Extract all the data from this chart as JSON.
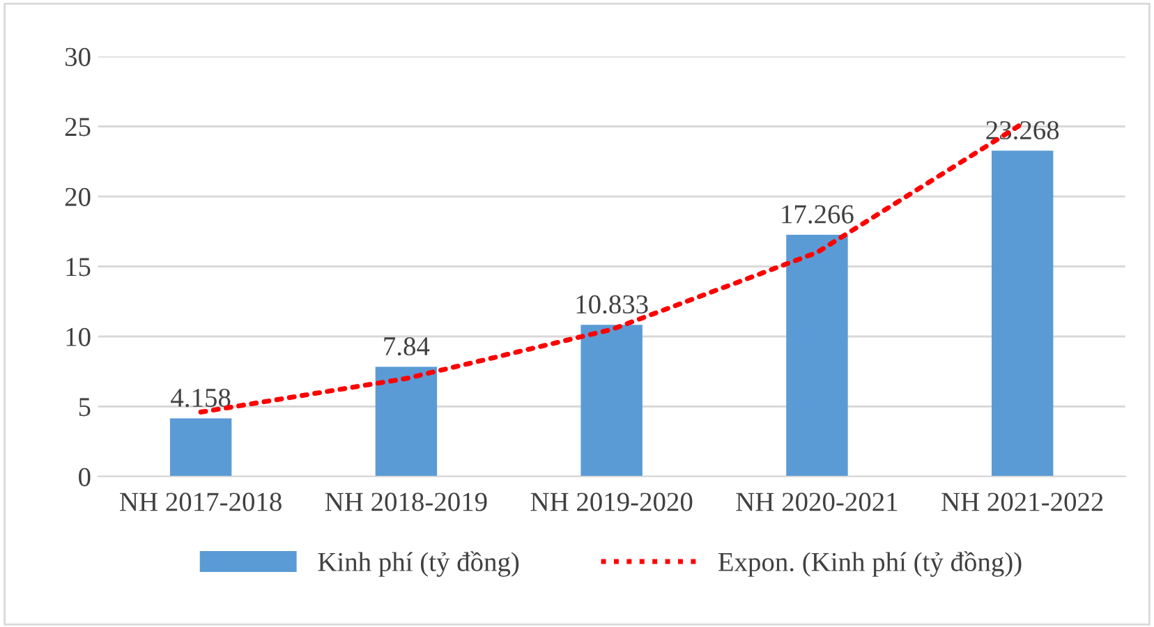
{
  "chart_data": {
    "type": "bar",
    "categories": [
      "NH 2017-2018",
      "NH 2018-2019",
      "NH 2019-2020",
      "NH 2020-2021",
      "NH 2021-2022"
    ],
    "series": [
      {
        "name": "Kinh phí (tỷ đồng)",
        "color": "#5b9bd5",
        "values": [
          4.158,
          7.84,
          10.833,
          17.266,
          23.268
        ],
        "value_labels": [
          "4.158",
          "7.84",
          "10.833",
          "17.266",
          "23.268"
        ]
      },
      {
        "name": "Expon. (Kinh phí (tỷ đồng))",
        "type": "line",
        "color": "#ff0000",
        "line_style": "dotted",
        "values": [
          4.6,
          7.0,
          10.5,
          16.0,
          25.2
        ]
      }
    ],
    "ylim": [
      0,
      30
    ],
    "yticks": [
      0,
      5,
      10,
      15,
      20,
      25,
      30
    ],
    "grid": "y",
    "legend": "bottom"
  }
}
